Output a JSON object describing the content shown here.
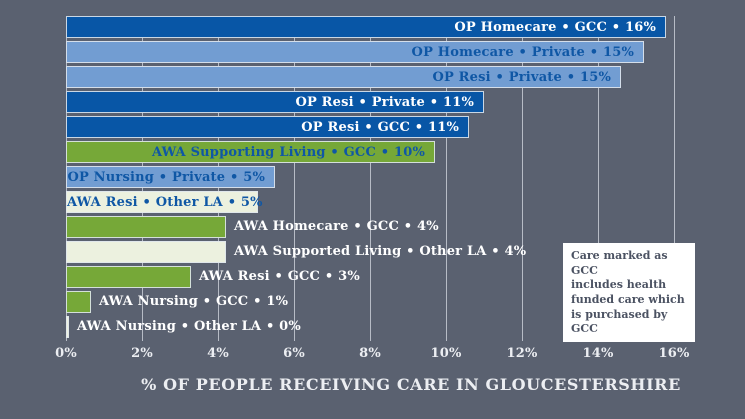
{
  "page": {
    "background_color": "#5a6170"
  },
  "colors": {
    "background": "#5a6170",
    "bar_dark_blue": "#0856a6",
    "bar_light_blue": "#729dd2",
    "bar_green": "#76a838",
    "bar_cream": "#ecf1df",
    "bar_border": "#dfe5ec",
    "gridline": "#c8cdd5",
    "label_on_dark_bar": "#ffffff",
    "label_on_light_bar": "#0f57a5",
    "axis_text": "#eceef2",
    "note_background": "#ffffff",
    "note_text": "#4b5262"
  },
  "chart_data": {
    "type": "bar",
    "orientation": "horizontal",
    "title": "",
    "xlabel": "% OF PEOPLE RECEIVING CARE IN GLOUCESTERSHIRE",
    "ylabel": "",
    "xlim": [
      0,
      16
    ],
    "x_tick_labels": [
      "0%",
      "2%",
      "4%",
      "6%",
      "8%",
      "10%",
      "12%",
      "14%",
      "16%"
    ],
    "grid": true,
    "legend_position": "none",
    "bars": [
      {
        "label": "OP Homecare • GCC • 16%",
        "service": "OP Homecare",
        "funder": "GCC",
        "pct": 16,
        "bar_value": 15.8,
        "color": "dark_blue",
        "label_position": "inside"
      },
      {
        "label": "OP Homecare • Private • 15%",
        "service": "OP Homecare",
        "funder": "Private",
        "pct": 15,
        "bar_value": 15.2,
        "color": "light_blue",
        "label_position": "inside"
      },
      {
        "label": "OP Resi • Private • 15%",
        "service": "OP Resi",
        "funder": "Private",
        "pct": 15,
        "bar_value": 14.6,
        "color": "light_blue",
        "label_position": "inside"
      },
      {
        "label": "OP Resi • Private • 11%",
        "service": "OP Resi",
        "funder": "Private",
        "pct": 11,
        "bar_value": 11.0,
        "color": "dark_blue",
        "label_position": "inside"
      },
      {
        "label": "OP Resi • GCC • 11%",
        "service": "OP Resi",
        "funder": "GCC",
        "pct": 11,
        "bar_value": 10.6,
        "color": "dark_blue",
        "label_position": "inside"
      },
      {
        "label": "AWA Supporting Living • GCC • 10%",
        "service": "AWA Supporting Living",
        "funder": "GCC",
        "pct": 10,
        "bar_value": 9.7,
        "color": "green",
        "label_position": "inside"
      },
      {
        "label": "OP Nursing • Private • 5%",
        "service": "OP Nursing",
        "funder": "Private",
        "pct": 5,
        "bar_value": 5.5,
        "color": "light_blue",
        "label_position": "inside"
      },
      {
        "label": "AWA Resi • Other LA • 5%",
        "service": "AWA Resi",
        "funder": "Other LA",
        "pct": 5,
        "bar_value": 5.05,
        "color": "cream",
        "label_position": "inside"
      },
      {
        "label": "AWA Homecare • GCC • 4%",
        "service": "AWA Homecare",
        "funder": "GCC",
        "pct": 4,
        "bar_value": 4.2,
        "color": "green",
        "label_position": "outside"
      },
      {
        "label": "AWA Supported Living • Other LA • 4%",
        "service": "AWA Supported Living",
        "funder": "Other LA",
        "pct": 4,
        "bar_value": 4.2,
        "color": "cream",
        "label_position": "outside"
      },
      {
        "label": "AWA Resi • GCC • 3%",
        "service": "AWA Resi",
        "funder": "GCC",
        "pct": 3,
        "bar_value": 3.3,
        "color": "green",
        "label_position": "outside"
      },
      {
        "label": "AWA Nursing • GCC • 1%",
        "service": "AWA Nursing",
        "funder": "GCC",
        "pct": 1,
        "bar_value": 0.65,
        "color": "green",
        "label_position": "outside"
      },
      {
        "label": "AWA Nursing • Other LA • 0%",
        "service": "AWA Nursing",
        "funder": "Other LA",
        "pct": 0,
        "bar_value": 0.08,
        "color": "cream",
        "label_position": "outside"
      }
    ],
    "annotation": "Care marked as GCC\nincludes health\nfunded care which\nis purchased by GCC"
  }
}
